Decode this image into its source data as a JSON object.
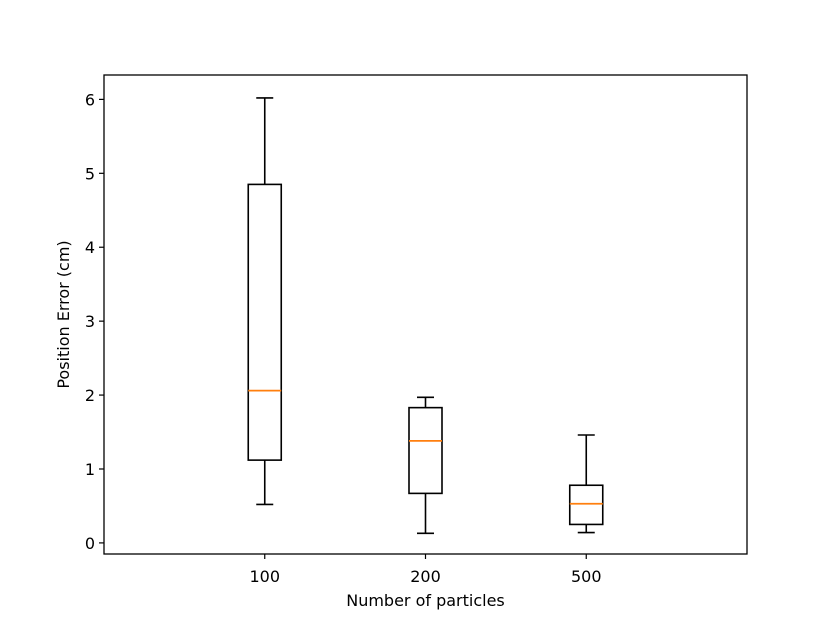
{
  "chart_data": {
    "type": "box",
    "xlabel": "Number of particles",
    "ylabel": "Position Error (cm)",
    "categories": [
      "100",
      "200",
      "500"
    ],
    "boxes": [
      {
        "category": "100",
        "whisker_low": 0.52,
        "q1": 1.12,
        "median": 2.06,
        "q3": 4.85,
        "whisker_high": 6.02
      },
      {
        "category": "200",
        "whisker_low": 0.13,
        "q1": 0.67,
        "median": 1.38,
        "q3": 1.83,
        "whisker_high": 1.97
      },
      {
        "category": "500",
        "whisker_low": 0.14,
        "q1": 0.25,
        "median": 0.53,
        "q3": 0.78,
        "whisker_high": 1.46
      }
    ],
    "ylim": [
      -0.15,
      6.33
    ],
    "yticks": [
      "0",
      "1",
      "2",
      "3",
      "4",
      "5",
      "6"
    ],
    "grid": false,
    "colors": {
      "box": "#000000",
      "median": "#ff7f0e"
    }
  }
}
